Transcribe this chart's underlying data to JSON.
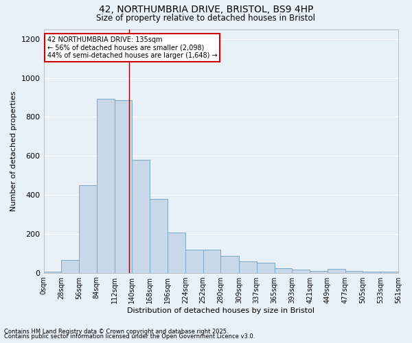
{
  "title_line1": "42, NORTHUMBRIA DRIVE, BRISTOL, BS9 4HP",
  "title_line2": "Size of property relative to detached houses in Bristol",
  "xlabel": "Distribution of detached houses by size in Bristol",
  "ylabel": "Number of detached properties",
  "bar_edges": [
    0,
    28,
    56,
    84,
    112,
    140,
    168,
    196,
    224,
    252,
    280,
    309,
    337,
    365,
    393,
    421,
    449,
    477,
    505,
    533,
    561
  ],
  "bar_heights": [
    7,
    65,
    448,
    893,
    887,
    581,
    379,
    205,
    118,
    118,
    85,
    58,
    52,
    22,
    15,
    10,
    18,
    8,
    5,
    5
  ],
  "bar_color": "#c8d8e8",
  "bar_edge_color": "#7aa8c8",
  "property_size": 135,
  "vline_color": "#8b0000",
  "annotation_text": "42 NORTHUMBRIA DRIVE: 135sqm\n← 56% of detached houses are smaller (2,098)\n44% of semi-detached houses are larger (1,648) →",
  "annotation_box_color": "#ffffff",
  "annotation_box_edge_color": "#cc0000",
  "ylim": [
    0,
    1250
  ],
  "yticks": [
    0,
    200,
    400,
    600,
    800,
    1000,
    1200
  ],
  "tick_labels": [
    "0sqm",
    "28sqm",
    "56sqm",
    "84sqm",
    "112sqm",
    "140sqm",
    "168sqm",
    "196sqm",
    "224sqm",
    "252sqm",
    "280sqm",
    "309sqm",
    "337sqm",
    "365sqm",
    "393sqm",
    "421sqm",
    "449sqm",
    "477sqm",
    "505sqm",
    "533sqm",
    "561sqm"
  ],
  "background_color": "#e8f0f8",
  "grid_color": "#ffffff",
  "footnote1": "Contains HM Land Registry data © Crown copyright and database right 2025.",
  "footnote2": "Contains public sector information licensed under the Open Government Licence v3.0."
}
